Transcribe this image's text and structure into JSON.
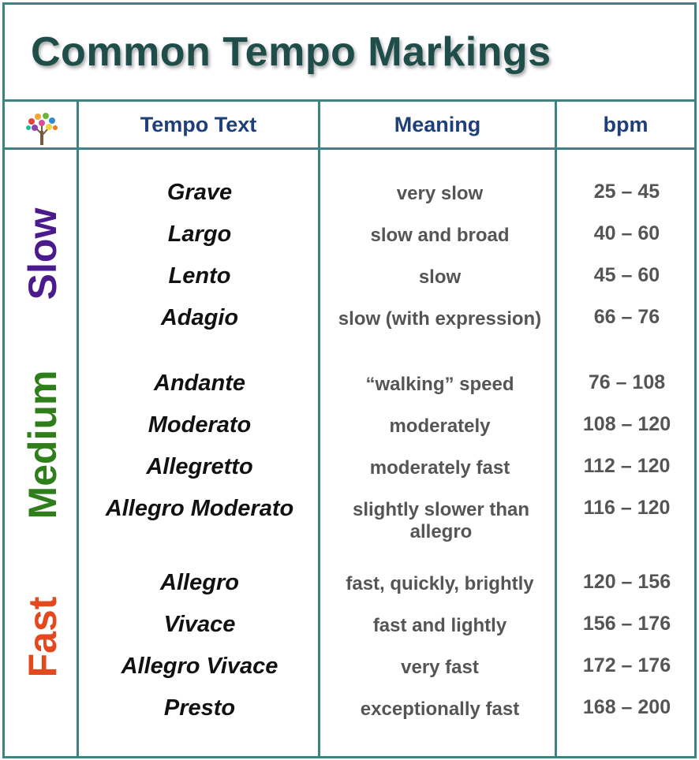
{
  "title": "Common Tempo Markings",
  "headers": {
    "icon": "tree-icon",
    "tempo_text": "Tempo Text",
    "meaning": "Meaning",
    "bpm": "bpm"
  },
  "groups": [
    {
      "label": "Slow",
      "color": "#4b1a8c"
    },
    {
      "label": "Medium",
      "color": "#2f7d1b"
    },
    {
      "label": "Fast",
      "color": "#e3481e"
    }
  ],
  "rows": [
    {
      "tempo": "Grave",
      "meaning": "very slow",
      "bpm": "25 – 45"
    },
    {
      "tempo": "Largo",
      "meaning": "slow and broad",
      "bpm": "40 – 60"
    },
    {
      "tempo": "Lento",
      "meaning": "slow",
      "bpm": "45 – 60"
    },
    {
      "tempo": "Adagio",
      "meaning": "slow (with expression)",
      "bpm": "66 – 76"
    },
    {
      "tempo": "Andante",
      "meaning": "“walking” speed",
      "bpm": "76 – 108"
    },
    {
      "tempo": "Moderato",
      "meaning": "moderately",
      "bpm": "108 – 120"
    },
    {
      "tempo": "Allegretto",
      "meaning": "moderately fast",
      "bpm": "112 – 120"
    },
    {
      "tempo": "Allegro Moderato",
      "meaning": "slightly slower than allegro",
      "bpm": "116 – 120"
    },
    {
      "tempo": "Allegro",
      "meaning": "fast, quickly, brightly",
      "bpm": "120 – 156"
    },
    {
      "tempo": "Vivace",
      "meaning": "fast and lightly",
      "bpm": "156 – 176"
    },
    {
      "tempo": "Allegro Vivace",
      "meaning": "very fast",
      "bpm": "172 – 176"
    },
    {
      "tempo": "Presto",
      "meaning": "exceptionally fast",
      "bpm": "168 – 200"
    }
  ],
  "colors": {
    "border": "#3a8584",
    "title": "#1f4d4a",
    "header_text": "#1e3f7a",
    "tempo_text": "#111111",
    "body_text": "#555555"
  }
}
